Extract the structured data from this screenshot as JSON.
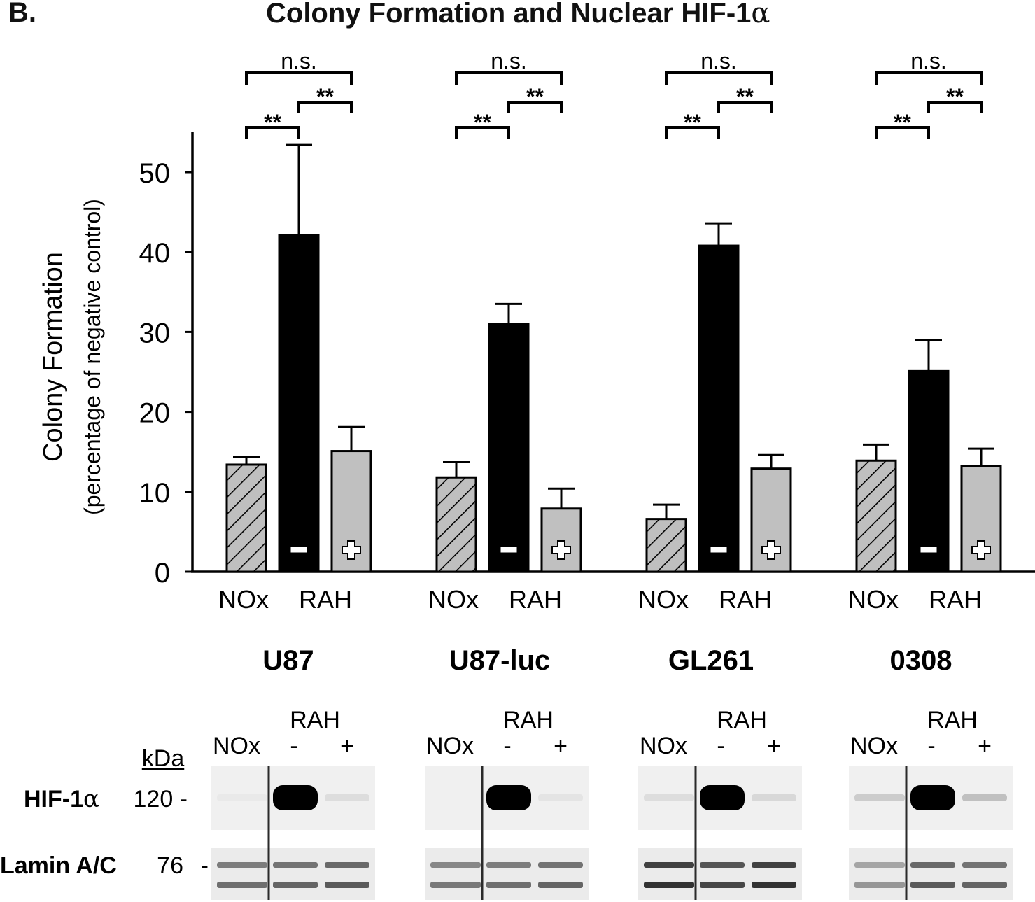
{
  "panel": {
    "letter": "B.",
    "title": "Colony Formation and Nuclear HIF-1",
    "title_greek": "α"
  },
  "chart_data": {
    "type": "bar",
    "title": "Colony Formation and Nuclear HIF-1α",
    "xlabel": "",
    "ylabel": "Colony Formation",
    "ylabel_sub": "(percentage of negative control)",
    "ylim": [
      0,
      55
    ],
    "yticks": [
      0,
      10,
      20,
      30,
      40,
      50
    ],
    "grid": false,
    "legend": null,
    "groups": [
      "U87",
      "U87-luc",
      "GL261",
      "0308"
    ],
    "bar_conditions": [
      "NOx",
      "RAH -",
      "RAH +"
    ],
    "x_tick_labels": [
      "NOx",
      "RAH"
    ],
    "series": [
      {
        "name": "NOx",
        "style": "hatched-gray",
        "values": [
          13.4,
          11.8,
          6.6,
          13.9
        ],
        "error_upper": [
          14.4,
          13.7,
          8.4,
          15.9
        ]
      },
      {
        "name": "RAH -",
        "style": "solid-black",
        "marker": "−",
        "values": [
          42.1,
          31.0,
          40.8,
          25.1
        ],
        "error_upper": [
          53.4,
          33.5,
          43.6,
          29.0
        ]
      },
      {
        "name": "RAH +",
        "style": "solid-lightgray",
        "marker": "+",
        "values": [
          15.1,
          7.9,
          12.9,
          13.2
        ],
        "error_upper": [
          18.1,
          10.4,
          14.6,
          15.4
        ]
      }
    ],
    "annotations": [
      {
        "group": "U87",
        "comparisons": [
          {
            "pair": [
              "NOx",
              "RAH -"
            ],
            "label": "**"
          },
          {
            "pair": [
              "RAH -",
              "RAH +"
            ],
            "label": "**"
          },
          {
            "pair": [
              "NOx",
              "RAH +"
            ],
            "label": "n.s."
          }
        ]
      },
      {
        "group": "U87-luc",
        "comparisons": [
          {
            "pair": [
              "NOx",
              "RAH -"
            ],
            "label": "**"
          },
          {
            "pair": [
              "RAH -",
              "RAH +"
            ],
            "label": "**"
          },
          {
            "pair": [
              "NOx",
              "RAH +"
            ],
            "label": "n.s."
          }
        ]
      },
      {
        "group": "GL261",
        "comparisons": [
          {
            "pair": [
              "NOx",
              "RAH -"
            ],
            "label": "**"
          },
          {
            "pair": [
              "RAH -",
              "RAH +"
            ],
            "label": "**"
          },
          {
            "pair": [
              "NOx",
              "RAH +"
            ],
            "label": "n.s."
          }
        ]
      },
      {
        "group": "0308",
        "comparisons": [
          {
            "pair": [
              "NOx",
              "RAH -"
            ],
            "label": "**"
          },
          {
            "pair": [
              "RAH -",
              "RAH +"
            ],
            "label": "**"
          },
          {
            "pair": [
              "NOx",
              "RAH +"
            ],
            "label": "n.s."
          }
        ]
      }
    ]
  },
  "colors": {
    "hatched_fill": "#bfbfbf",
    "rah_minus": "#000000",
    "rah_plus": "#c0c0c0",
    "axis": "#000000"
  },
  "western_blot": {
    "header_top": "RAH",
    "lane_labels": [
      "NOx",
      "-",
      "+"
    ],
    "kda_label": "kDa",
    "rows": [
      {
        "protein": "HIF-1",
        "protein_greek": "α",
        "kda": "120",
        "intensity": {
          "U87": [
            0.03,
            1.0,
            0.08
          ],
          "U87-luc": [
            0.0,
            1.0,
            0.05
          ],
          "GL261": [
            0.08,
            1.0,
            0.1
          ],
          "0308": [
            0.15,
            1.0,
            0.2
          ]
        }
      },
      {
        "protein": "Lamin A/C",
        "kda": "76",
        "intensity": {
          "U87": [
            0.55,
            0.6,
            0.65
          ],
          "U87-luc": [
            0.5,
            0.55,
            0.6
          ],
          "GL261": [
            0.85,
            0.75,
            0.85
          ],
          "0308": [
            0.35,
            0.65,
            0.6
          ]
        }
      }
    ],
    "dash": "-"
  }
}
